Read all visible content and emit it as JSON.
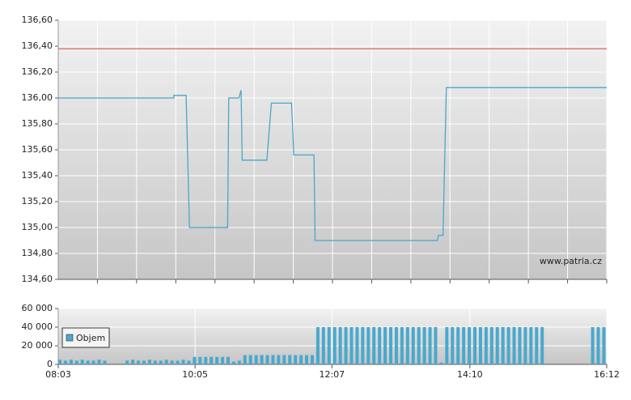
{
  "chart_data": [
    {
      "type": "line",
      "x": [
        "08:03",
        "09:46",
        "09:46",
        "09:57",
        "10:00",
        "10:34",
        "10:35",
        "10:44",
        "10:46",
        "10:47",
        "11:09",
        "11:13",
        "11:31",
        "11:33",
        "11:51",
        "11:52",
        "13:41",
        "13:42",
        "13:46",
        "13:49",
        "16:12"
      ],
      "values": [
        136.0,
        136.0,
        136.02,
        136.02,
        135.0,
        135.0,
        136.0,
        136.0,
        136.06,
        135.52,
        135.52,
        135.96,
        135.96,
        135.56,
        135.56,
        134.9,
        134.9,
        134.94,
        134.94,
        136.08,
        136.08
      ],
      "color": "#4ba6c8",
      "xlim": [
        "08:03",
        "16:12"
      ],
      "ylim": [
        134.6,
        136.6
      ],
      "yticks": [
        {
          "value": 134.6,
          "label": "134,60"
        },
        {
          "value": 134.8,
          "label": "134,80"
        },
        {
          "value": 135.0,
          "label": "135,00"
        },
        {
          "value": 135.2,
          "label": "135,20"
        },
        {
          "value": 135.4,
          "label": "135,40"
        },
        {
          "value": 135.6,
          "label": "135,60"
        },
        {
          "value": 135.8,
          "label": "135,80"
        },
        {
          "value": 136.0,
          "label": "136,00"
        },
        {
          "value": 136.2,
          "label": "136,20"
        },
        {
          "value": 136.4,
          "label": "136,40"
        },
        {
          "value": 136.6,
          "label": "136,60"
        }
      ],
      "reference_line": {
        "value": 136.38,
        "color": "#d9534f"
      },
      "watermark": "www.patria.cz",
      "grid": true
    },
    {
      "type": "bar",
      "x": [
        "08:03",
        "08:08",
        "08:13",
        "08:18",
        "08:23",
        "08:28",
        "08:33",
        "08:38",
        "08:43",
        "08:48",
        "08:53",
        "08:58",
        "09:03",
        "09:08",
        "09:13",
        "09:18",
        "09:23",
        "09:28",
        "09:33",
        "09:38",
        "09:43",
        "09:48",
        "09:53",
        "09:58",
        "10:03",
        "10:08",
        "10:13",
        "10:18",
        "10:23",
        "10:28",
        "10:33",
        "10:38",
        "10:43",
        "10:48",
        "10:53",
        "10:58",
        "11:03",
        "11:08",
        "11:13",
        "11:18",
        "11:23",
        "11:28",
        "11:33",
        "11:38",
        "11:43",
        "11:48",
        "11:53",
        "11:58",
        "12:03",
        "12:08",
        "12:13",
        "12:18",
        "12:23",
        "12:28",
        "12:33",
        "12:38",
        "12:43",
        "12:48",
        "12:53",
        "12:58",
        "13:03",
        "13:08",
        "13:13",
        "13:18",
        "13:23",
        "13:28",
        "13:33",
        "13:38",
        "13:43",
        "13:48",
        "13:53",
        "13:58",
        "14:03",
        "14:08",
        "14:13",
        "14:18",
        "14:23",
        "14:28",
        "14:33",
        "14:38",
        "14:43",
        "14:48",
        "14:53",
        "14:58",
        "15:03",
        "15:08",
        "15:13",
        "15:18",
        "15:23",
        "15:28",
        "15:33",
        "15:38",
        "15:43",
        "15:48",
        "15:53",
        "15:58",
        "16:03",
        "16:08"
      ],
      "series": [
        {
          "name": "Objem",
          "color": "#4aa8cc",
          "values": [
            5000,
            4000,
            5000,
            4000,
            5000,
            4000,
            4000,
            5000,
            4000,
            0,
            0,
            0,
            4000,
            5000,
            4000,
            4000,
            5000,
            4000,
            4000,
            5000,
            4000,
            4000,
            5000,
            4000,
            8000,
            8000,
            8000,
            8000,
            8000,
            8000,
            8000,
            3000,
            4000,
            10000,
            10000,
            10000,
            10000,
            10000,
            10000,
            10000,
            10000,
            10000,
            10000,
            10000,
            10000,
            10000,
            40000,
            40000,
            40000,
            40000,
            40000,
            40000,
            40000,
            40000,
            40000,
            40000,
            40000,
            40000,
            40000,
            40000,
            40000,
            40000,
            40000,
            40000,
            40000,
            40000,
            40000,
            40000,
            2000,
            40000,
            40000,
            40000,
            40000,
            40000,
            40000,
            40000,
            40000,
            40000,
            40000,
            40000,
            40000,
            40000,
            40000,
            40000,
            40000,
            40000,
            40000,
            0,
            0,
            0,
            0,
            0,
            0,
            0,
            0,
            40000,
            40000,
            40000
          ]
        }
      ],
      "xlim": [
        "08:03",
        "16:12"
      ],
      "xticks": [
        "08:03",
        "10:05",
        "12:07",
        "14:10",
        "16:12"
      ],
      "ylim": [
        0,
        60000
      ],
      "yticks": [
        0,
        {
          "value": 20000,
          "label": "20 000"
        },
        {
          "value": 40000,
          "label": "40 000"
        },
        {
          "value": 60000,
          "label": "60 000"
        }
      ],
      "legend": "upper left",
      "grid": true
    }
  ]
}
